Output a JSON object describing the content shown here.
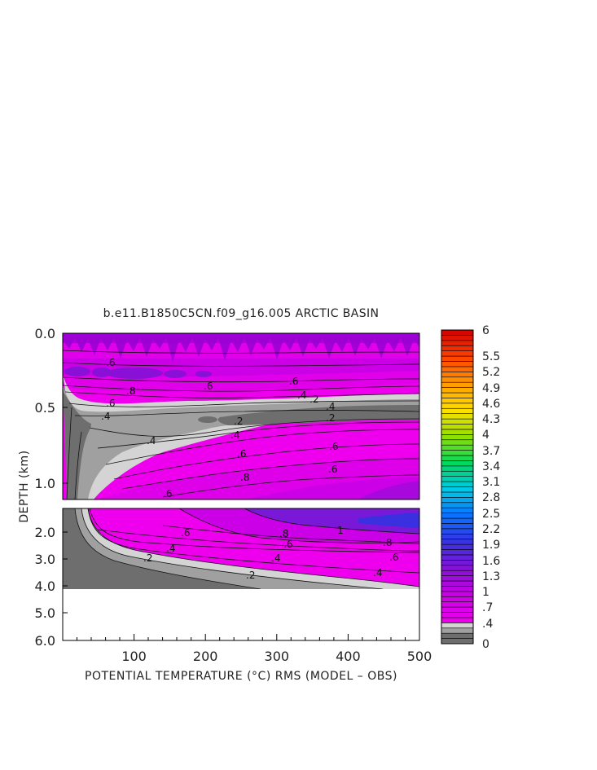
{
  "chart_data": {
    "type": "heatmap",
    "title": "b.e11.B1850C5CN.f09_g16.005 ARCTIC BASIN",
    "xlabel": "POTENTIAL TEMPERATURE (°C) RMS (MODEL – OBS)",
    "ylabel": "DEPTH (km)",
    "x_ticks": [
      "100",
      "200",
      "300",
      "400",
      "500"
    ],
    "xlim": [
      0,
      500
    ],
    "upper_panel": {
      "ylim": [
        0.0,
        1.12
      ],
      "y_ticks": [
        "0.0",
        "0.5",
        "1.0"
      ]
    },
    "lower_panel": {
      "ylim": [
        1.4,
        6.0
      ],
      "y_ticks": [
        "2.0",
        "3.0",
        "4.0",
        "5.0",
        "6.0"
      ],
      "data_bottom_km": 4.05
    },
    "contour_labels_upper": [
      ".6",
      ".8",
      ".6",
      ".4",
      ".6",
      ".2",
      ".4",
      ".2",
      ".4",
      ".4",
      ".2",
      ".6",
      ".6",
      ".8",
      ".6",
      ".6",
      ".4",
      ".6"
    ],
    "contour_labels_lower": [
      ".6",
      ".8",
      "1",
      ".8",
      ".6",
      ".4",
      ".6",
      ".4",
      ".2",
      ".2",
      ".4"
    ],
    "colorbar": {
      "labels": [
        "6",
        "5.5",
        "5.2",
        "4.9",
        "4.6",
        "4.3",
        "4",
        "3.7",
        "3.4",
        "3.1",
        "2.8",
        "2.5",
        "2.2",
        "1.9",
        "1.6",
        "1.3",
        "1",
        ".7",
        ".4",
        "0"
      ],
      "levels": [
        0,
        0.1,
        0.2,
        0.3,
        0.4,
        0.5,
        0.6,
        0.7,
        0.8,
        0.9,
        1.0,
        1.1,
        1.2,
        1.3,
        1.4,
        1.5,
        1.6,
        1.7,
        1.8,
        1.9,
        2.0,
        2.1,
        2.2,
        2.3,
        2.4,
        2.5,
        2.6,
        2.7,
        2.8,
        2.9,
        3.0,
        3.1,
        3.2,
        3.3,
        3.4,
        3.5,
        3.6,
        3.7,
        3.8,
        3.9,
        4.0,
        4.1,
        4.2,
        4.3,
        4.4,
        4.5,
        4.6,
        4.7,
        4.8,
        4.9,
        5.0,
        5.1,
        5.2,
        5.3,
        5.4,
        5.5,
        5.6,
        5.7,
        5.8,
        5.9,
        6.0
      ],
      "colors_key": [
        "#6e6e6e",
        "#a0a0a0",
        "#d4d4d4",
        "#ee00ee",
        "#cc00e6",
        "#8a10d8",
        "#3a30e0",
        "#0a70ff",
        "#00c8e8",
        "#00d860",
        "#90e000",
        "#ffe000",
        "#ff9a00",
        "#ff4000",
        "#d00000"
      ]
    }
  }
}
